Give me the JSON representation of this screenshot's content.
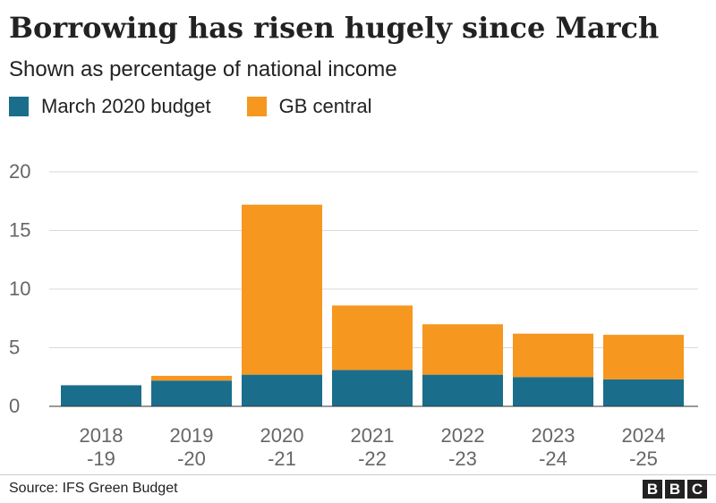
{
  "header": {
    "title": "Borrowing has risen hugely since March",
    "subtitle": "Shown as percentage of national income"
  },
  "footer": {
    "source": "Source: IFS Green Budget",
    "logo_letters": [
      "B",
      "B",
      "C"
    ]
  },
  "colors": {
    "march_budget": "#1a6e8c",
    "gb_central": "#f6971f",
    "grid": "#d9d9d9",
    "axis_text": "#666666"
  },
  "chart_data": {
    "type": "bar",
    "stacked": true,
    "categories": [
      [
        "2018",
        "-19"
      ],
      [
        "2019",
        "-20"
      ],
      [
        "2020",
        "-21"
      ],
      [
        "2021",
        "-22"
      ],
      [
        "2022",
        "-23"
      ],
      [
        "2023",
        "-24"
      ],
      [
        "2024",
        "-25"
      ]
    ],
    "series": [
      {
        "name": "March 2020 budget",
        "color": "#1a6e8c",
        "values": [
          1.8,
          2.2,
          2.7,
          3.1,
          2.7,
          2.5,
          2.3
        ]
      },
      {
        "name": "GB central",
        "color": "#f6971f",
        "values": [
          0,
          0.4,
          14.5,
          5.5,
          4.3,
          3.7,
          3.8
        ]
      }
    ],
    "ylim": [
      0,
      20
    ],
    "yticks": [
      0,
      5,
      10,
      15,
      20
    ],
    "grid": true,
    "legend_position": "top-left"
  }
}
